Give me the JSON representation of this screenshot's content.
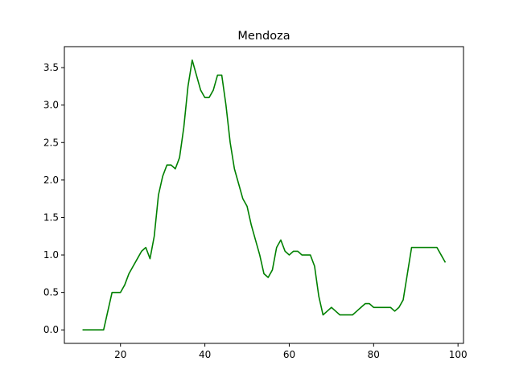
{
  "chart_data": {
    "type": "line",
    "title": "Mendoza",
    "xlabel": "",
    "ylabel": "",
    "xlim": [
      6.7,
      101.3
    ],
    "ylim": [
      -0.18,
      3.78
    ],
    "xticks": [
      20,
      40,
      60,
      80,
      100
    ],
    "yticks": [
      0.0,
      0.5,
      1.0,
      1.5,
      2.0,
      2.5,
      3.0,
      3.5
    ],
    "ytick_labels": [
      "0.0",
      "0.5",
      "1.0",
      "1.5",
      "2.0",
      "2.5",
      "3.0",
      "3.5"
    ],
    "grid": false,
    "series": [
      {
        "color": "#008000",
        "x": [
          11,
          12,
          13,
          14,
          15,
          16,
          17,
          18,
          19,
          20,
          21,
          22,
          23,
          24,
          25,
          26,
          27,
          28,
          29,
          30,
          31,
          32,
          33,
          34,
          35,
          36,
          37,
          38,
          39,
          40,
          41,
          42,
          43,
          44,
          45,
          46,
          47,
          48,
          49,
          50,
          51,
          52,
          53,
          54,
          55,
          56,
          57,
          58,
          59,
          60,
          61,
          62,
          63,
          64,
          65,
          66,
          67,
          68,
          69,
          70,
          71,
          72,
          73,
          74,
          75,
          76,
          77,
          78,
          79,
          80,
          81,
          82,
          83,
          84,
          85,
          86,
          87,
          88,
          89,
          90,
          91,
          92,
          93,
          94,
          95,
          96,
          97
        ],
        "y": [
          0.0,
          0.0,
          0.0,
          0.0,
          0.0,
          0.0,
          0.25,
          0.5,
          0.5,
          0.5,
          0.6,
          0.75,
          0.85,
          0.95,
          1.05,
          1.1,
          0.95,
          1.25,
          1.8,
          2.05,
          2.2,
          2.2,
          2.15,
          2.3,
          2.7,
          3.25,
          3.6,
          3.4,
          3.2,
          3.1,
          3.1,
          3.2,
          3.4,
          3.4,
          3.0,
          2.5,
          2.15,
          1.95,
          1.75,
          1.65,
          1.4,
          1.2,
          1.0,
          0.75,
          0.7,
          0.8,
          1.1,
          1.2,
          1.05,
          1.0,
          1.05,
          1.05,
          1.0,
          1.0,
          1.0,
          0.85,
          0.45,
          0.2,
          0.25,
          0.3,
          0.25,
          0.2,
          0.2,
          0.2,
          0.2,
          0.25,
          0.3,
          0.35,
          0.35,
          0.3,
          0.3,
          0.3,
          0.3,
          0.3,
          0.25,
          0.3,
          0.4,
          0.75,
          1.1,
          1.1,
          1.1,
          1.1,
          1.1,
          1.1,
          1.1,
          1.0,
          0.9
        ]
      }
    ]
  }
}
